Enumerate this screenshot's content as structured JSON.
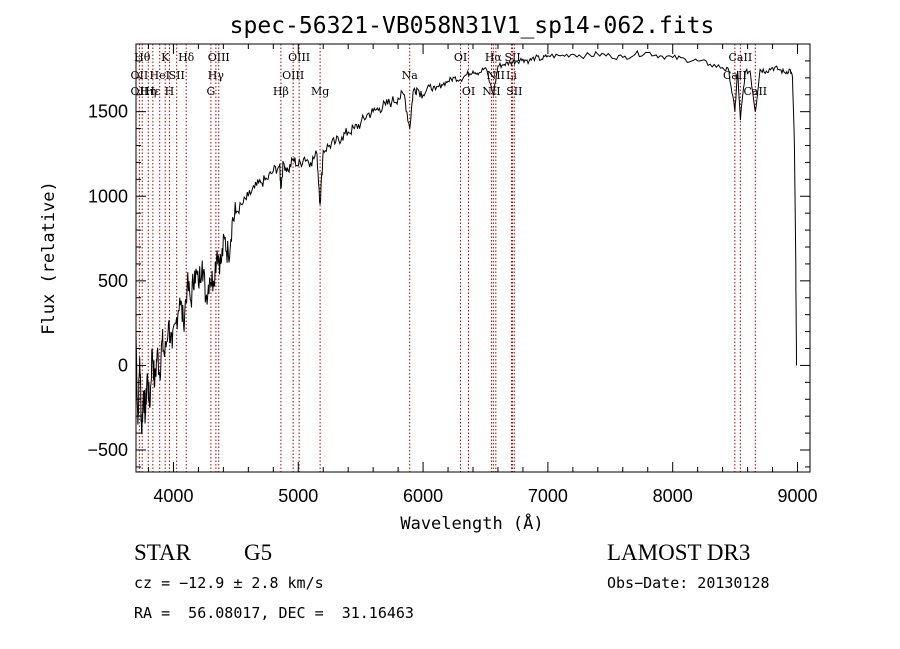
{
  "chart_data": {
    "type": "line",
    "title": "spec-56321-VB058N31V1_sp14-062.fits",
    "xlabel": "Wavelength (Å)",
    "ylabel": "Flux (relative)",
    "xlim": [
      3700,
      9100
    ],
    "ylim": [
      -630,
      1900
    ],
    "xticks": [
      4000,
      5000,
      6000,
      7000,
      8000,
      9000
    ],
    "yticks": [
      -500,
      0,
      500,
      1000,
      1500
    ],
    "grid": false,
    "series": [
      {
        "name": "flux",
        "color": "#000000",
        "points": [
          [
            3700,
            200
          ],
          [
            3715,
            -350
          ],
          [
            3730,
            50
          ],
          [
            3745,
            -400
          ],
          [
            3760,
            -150
          ],
          [
            3775,
            -300
          ],
          [
            3790,
            -50
          ],
          [
            3810,
            -250
          ],
          [
            3830,
            100
          ],
          [
            3850,
            -120
          ],
          [
            3870,
            80
          ],
          [
            3890,
            -50
          ],
          [
            3910,
            150
          ],
          [
            3930,
            50
          ],
          [
            3960,
            250
          ],
          [
            3990,
            100
          ],
          [
            4020,
            250
          ],
          [
            4050,
            400
          ],
          [
            4080,
            250
          ],
          [
            4110,
            480
          ],
          [
            4140,
            380
          ],
          [
            4170,
            560
          ],
          [
            4200,
            480
          ],
          [
            4230,
            620
          ],
          [
            4260,
            400
          ],
          [
            4290,
            520
          ],
          [
            4320,
            500
          ],
          [
            4350,
            680
          ],
          [
            4380,
            600
          ],
          [
            4410,
            750
          ],
          [
            4440,
            650
          ],
          [
            4470,
            850
          ],
          [
            4500,
            900
          ],
          [
            4550,
            950
          ],
          [
            4600,
            1000
          ],
          [
            4650,
            1050
          ],
          [
            4700,
            1080
          ],
          [
            4750,
            1100
          ],
          [
            4800,
            1150
          ],
          [
            4850,
            1180
          ],
          [
            4861,
            1050
          ],
          [
            4880,
            1200
          ],
          [
            4920,
            1150
          ],
          [
            4960,
            1220
          ],
          [
            5000,
            1180
          ],
          [
            5050,
            1230
          ],
          [
            5100,
            1200
          ],
          [
            5150,
            1250
          ],
          [
            5175,
            950
          ],
          [
            5200,
            1270
          ],
          [
            5250,
            1300
          ],
          [
            5300,
            1320
          ],
          [
            5350,
            1350
          ],
          [
            5400,
            1380
          ],
          [
            5450,
            1400
          ],
          [
            5500,
            1430
          ],
          [
            5550,
            1480
          ],
          [
            5600,
            1500
          ],
          [
            5650,
            1520
          ],
          [
            5700,
            1540
          ],
          [
            5750,
            1560
          ],
          [
            5800,
            1580
          ],
          [
            5850,
            1600
          ],
          [
            5893,
            1400
          ],
          [
            5920,
            1620
          ],
          [
            5950,
            1640
          ],
          [
            6000,
            1600
          ],
          [
            6050,
            1650
          ],
          [
            6100,
            1630
          ],
          [
            6150,
            1660
          ],
          [
            6200,
            1680
          ],
          [
            6250,
            1700
          ],
          [
            6300,
            1690
          ],
          [
            6350,
            1720
          ],
          [
            6400,
            1740
          ],
          [
            6450,
            1730
          ],
          [
            6500,
            1760
          ],
          [
            6563,
            1600
          ],
          [
            6600,
            1770
          ],
          [
            6650,
            1780
          ],
          [
            6700,
            1790
          ],
          [
            6750,
            1800
          ],
          [
            6800,
            1810
          ],
          [
            6850,
            1800
          ],
          [
            6900,
            1820
          ],
          [
            6950,
            1810
          ],
          [
            7000,
            1830
          ],
          [
            7100,
            1830
          ],
          [
            7200,
            1840
          ],
          [
            7300,
            1830
          ],
          [
            7400,
            1840
          ],
          [
            7500,
            1830
          ],
          [
            7600,
            1820
          ],
          [
            7700,
            1840
          ],
          [
            7800,
            1850
          ],
          [
            7900,
            1830
          ],
          [
            8000,
            1820
          ],
          [
            8100,
            1810
          ],
          [
            8200,
            1800
          ],
          [
            8300,
            1780
          ],
          [
            8400,
            1760
          ],
          [
            8450,
            1740
          ],
          [
            8498,
            1500
          ],
          [
            8520,
            1740
          ],
          [
            8542,
            1450
          ],
          [
            8580,
            1730
          ],
          [
            8620,
            1740
          ],
          [
            8662,
            1500
          ],
          [
            8700,
            1750
          ],
          [
            8750,
            1740
          ],
          [
            8800,
            1760
          ],
          [
            8850,
            1750
          ],
          [
            8900,
            1730
          ],
          [
            8940,
            1750
          ],
          [
            8960,
            1700
          ],
          [
            8975,
            1300
          ],
          [
            8985,
            700
          ],
          [
            8992,
            0
          ]
        ]
      }
    ],
    "line_markers": [
      {
        "wl": 3727,
        "labels": [
          {
            "text": "OII",
            "row": 1
          },
          {
            "text": "OII",
            "row": 2
          }
        ]
      },
      {
        "wl": 3750,
        "labels": [
          {
            "text": "Hθ",
            "row": 0
          }
        ]
      },
      {
        "wl": 3798,
        "labels": [
          {
            "text": "Hη",
            "row": 2
          }
        ]
      },
      {
        "wl": 3835,
        "labels": [
          {
            "text": "Hε",
            "row": 2
          }
        ]
      },
      {
        "wl": 3890,
        "labels": [
          {
            "text": "HeI",
            "row": 1
          }
        ]
      },
      {
        "wl": 3934,
        "labels": [
          {
            "text": "K",
            "row": 0
          }
        ]
      },
      {
        "wl": 3968,
        "labels": [
          {
            "text": "H",
            "row": 2
          }
        ]
      },
      {
        "wl": 4026,
        "labels": [
          {
            "text": "SII",
            "row": 1
          }
        ]
      },
      {
        "wl": 4102,
        "labels": [
          {
            "text": "Hδ",
            "row": 0
          }
        ]
      },
      {
        "wl": 4300,
        "labels": [
          {
            "text": "G",
            "row": 2
          }
        ]
      },
      {
        "wl": 4340,
        "labels": [
          {
            "text": "Hγ",
            "row": 1
          }
        ]
      },
      {
        "wl": 4363,
        "labels": [
          {
            "text": "OIII",
            "row": 0
          }
        ]
      },
      {
        "wl": 4861,
        "labels": [
          {
            "text": "Hβ",
            "row": 2
          }
        ]
      },
      {
        "wl": 4959,
        "labels": [
          {
            "text": "OIII",
            "row": 1
          }
        ]
      },
      {
        "wl": 5007,
        "labels": [
          {
            "text": "OIII",
            "row": 0
          }
        ]
      },
      {
        "wl": 5175,
        "labels": [
          {
            "text": "Mg",
            "row": 2
          }
        ]
      },
      {
        "wl": 5893,
        "labels": [
          {
            "text": "Na",
            "row": 1
          }
        ]
      },
      {
        "wl": 6300,
        "labels": [
          {
            "text": "OI",
            "row": 0
          }
        ]
      },
      {
        "wl": 6364,
        "labels": [
          {
            "text": "OI",
            "row": 2
          }
        ]
      },
      {
        "wl": 6548,
        "labels": [
          {
            "text": "NII",
            "row": 2
          }
        ]
      },
      {
        "wl": 6563,
        "labels": [
          {
            "text": "Hα",
            "row": 0
          }
        ]
      },
      {
        "wl": 6583,
        "labels": [
          {
            "text": "NII",
            "row": 1
          }
        ]
      },
      {
        "wl": 6708,
        "labels": [
          {
            "text": "Li",
            "row": 1
          }
        ]
      },
      {
        "wl": 6717,
        "labels": [
          {
            "text": "SII",
            "row": 0
          }
        ]
      },
      {
        "wl": 6731,
        "labels": [
          {
            "text": "SII",
            "row": 2
          }
        ]
      },
      {
        "wl": 8498,
        "labels": [
          {
            "text": "CaII",
            "row": 1
          }
        ]
      },
      {
        "wl": 8542,
        "labels": [
          {
            "text": "CaII",
            "row": 0
          }
        ]
      },
      {
        "wl": 8662,
        "labels": [
          {
            "text": "CaII",
            "row": 2
          }
        ]
      }
    ],
    "colors": {
      "flux": "#000000",
      "marker": "#b40000",
      "axes": "#000000"
    }
  },
  "info": {
    "object_class": "STAR",
    "subclass": "G5",
    "survey": "LAMOST DR3",
    "cz": "cz = −12.9 ± 2.8 km/s",
    "obs_date": "Obs−Date: 20130128",
    "coords": "RA =  56.08017, DEC =  31.16463"
  }
}
